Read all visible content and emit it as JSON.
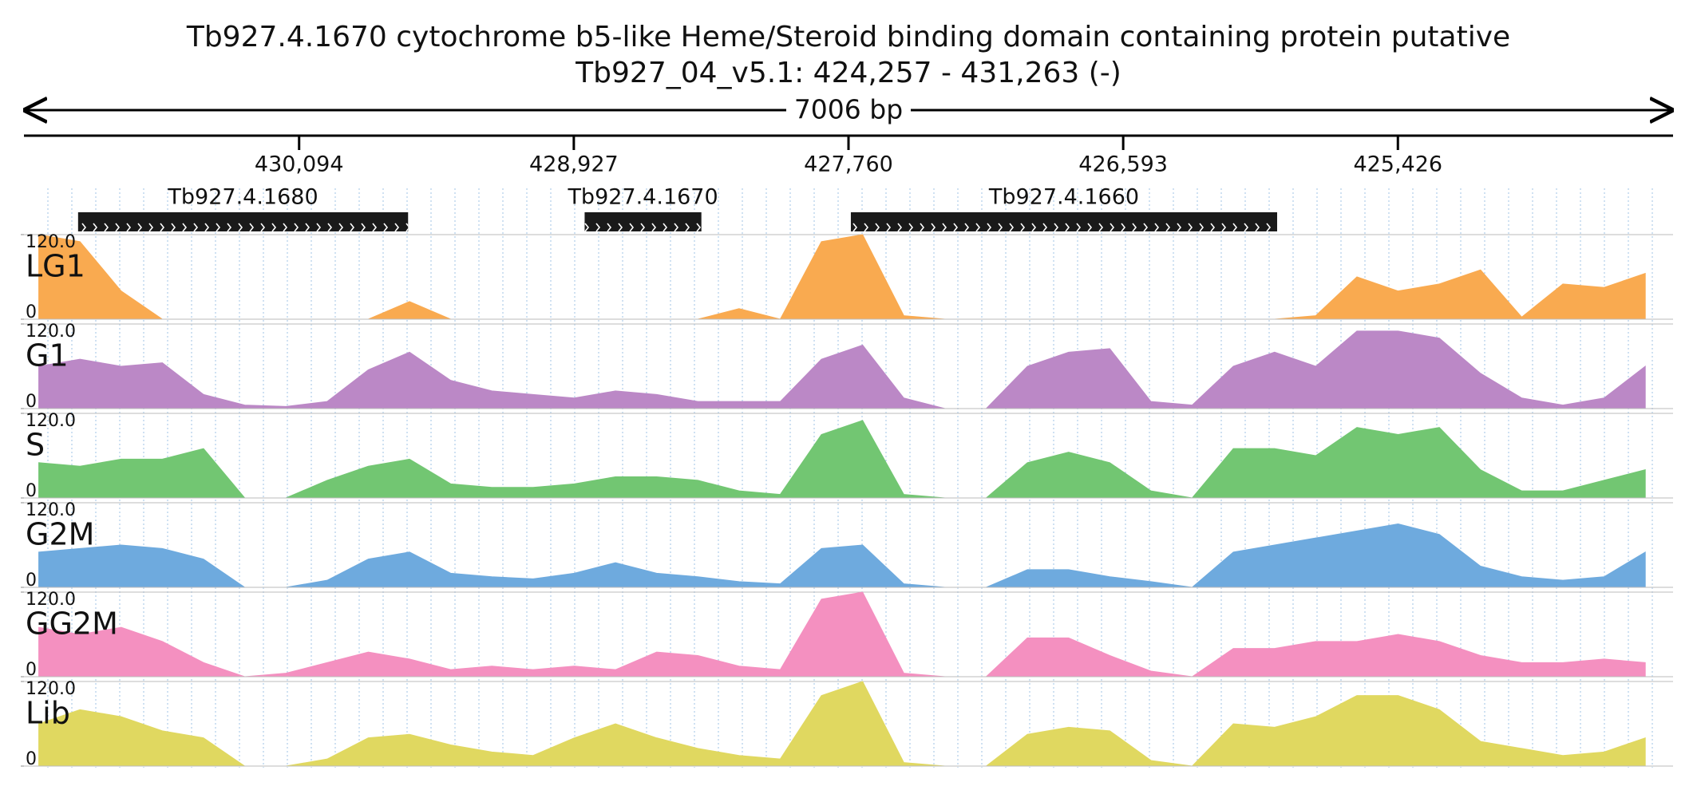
{
  "header": {
    "title": "Tb927.4.1670  cytochrome b5-like Heme/Steroid binding domain containing protein  putative",
    "subtitle": "Tb927_04_v5.1: 424,257 - 431,263 (-)",
    "span": "7006 bp"
  },
  "ruler": {
    "xlim": [
      431263,
      424257
    ],
    "xticks": [
      {
        "value": 430094,
        "label": "430,094"
      },
      {
        "value": 428927,
        "label": "428,927"
      },
      {
        "value": 427760,
        "label": "427,760"
      },
      {
        "value": 426593,
        "label": "426,593"
      },
      {
        "value": 425426,
        "label": "425,426"
      }
    ]
  },
  "genes": [
    {
      "label": "Tb927.4.1680",
      "start": 431033,
      "end": 429631
    },
    {
      "label": "Tb927.4.1670",
      "start": 428881,
      "end": 428385
    },
    {
      "label": "Tb927.4.1660",
      "start": 427750,
      "end": 425939
    }
  ],
  "chart_data": [
    {
      "type": "area",
      "name": "LG1",
      "color": "#f9aa50",
      "xlim": [
        431263,
        424257
      ],
      "ylim": [
        0,
        120
      ],
      "yticks": [
        0,
        {
          "value": 120,
          "label": "120.0"
        }
      ],
      "x": [
        431200,
        431025,
        430850,
        430675,
        430500,
        430325,
        430150,
        429975,
        429800,
        429625,
        429450,
        429275,
        429100,
        428925,
        428750,
        428575,
        428400,
        428225,
        428050,
        427875,
        427700,
        427525,
        427350,
        427175,
        427000,
        426825,
        426650,
        426475,
        426300,
        426125,
        425950,
        425775,
        425600,
        425425,
        425250,
        425075,
        424900,
        424725,
        424550,
        424375
      ],
      "values": [
        120,
        110,
        40,
        0,
        0,
        0,
        0,
        0,
        0,
        25,
        0,
        0,
        0,
        0,
        0,
        0,
        0,
        15,
        0,
        110,
        120,
        5,
        0,
        0,
        0,
        0,
        0,
        0,
        0,
        0,
        0,
        5,
        60,
        40,
        50,
        70,
        3,
        50,
        45,
        65
      ]
    },
    {
      "type": "area",
      "name": "G1",
      "color": "#bb88c6",
      "xlim": [
        431263,
        424257
      ],
      "ylim": [
        0,
        120
      ],
      "yticks": [
        0,
        {
          "value": 120,
          "label": "120.0"
        }
      ],
      "x": [
        431200,
        431025,
        430850,
        430675,
        430500,
        430325,
        430150,
        429975,
        429800,
        429625,
        429450,
        429275,
        429100,
        428925,
        428750,
        428575,
        428400,
        428225,
        428050,
        427875,
        427700,
        427525,
        427350,
        427175,
        427000,
        426825,
        426650,
        426475,
        426300,
        426125,
        425950,
        425775,
        425600,
        425425,
        425250,
        425075,
        424900,
        424725,
        424550,
        424375
      ],
      "values": [
        60,
        70,
        60,
        65,
        20,
        5,
        3,
        10,
        55,
        80,
        40,
        25,
        20,
        15,
        25,
        20,
        10,
        10,
        10,
        70,
        90,
        15,
        0,
        0,
        60,
        80,
        85,
        10,
        5,
        60,
        80,
        60,
        110,
        110,
        100,
        50,
        15,
        5,
        15,
        60
      ]
    },
    {
      "type": "area",
      "name": "S",
      "color": "#72c672",
      "xlim": [
        431263,
        424257
      ],
      "ylim": [
        0,
        120
      ],
      "yticks": [
        0,
        {
          "value": 120,
          "label": "120.0"
        }
      ],
      "x": [
        431200,
        431025,
        430850,
        430675,
        430500,
        430325,
        430150,
        429975,
        429800,
        429625,
        429450,
        429275,
        429100,
        428925,
        428750,
        428575,
        428400,
        428225,
        428050,
        427875,
        427700,
        427525,
        427350,
        427175,
        427000,
        426825,
        426650,
        426475,
        426300,
        426125,
        425950,
        425775,
        425600,
        425425,
        425250,
        425075,
        424900,
        424725,
        424550,
        424375
      ],
      "values": [
        50,
        45,
        55,
        55,
        70,
        0,
        0,
        25,
        45,
        55,
        20,
        15,
        15,
        20,
        30,
        30,
        25,
        10,
        5,
        90,
        110,
        5,
        0,
        0,
        50,
        65,
        50,
        10,
        0,
        70,
        70,
        60,
        100,
        90,
        100,
        40,
        10,
        10,
        25,
        40
      ]
    },
    {
      "type": "area",
      "name": "G2M",
      "color": "#6eaade",
      "xlim": [
        431263,
        424257
      ],
      "ylim": [
        0,
        120
      ],
      "yticks": [
        0,
        {
          "value": 120,
          "label": "120.0"
        }
      ],
      "x": [
        431200,
        431025,
        430850,
        430675,
        430500,
        430325,
        430150,
        429975,
        429800,
        429625,
        429450,
        429275,
        429100,
        428925,
        428750,
        428575,
        428400,
        428225,
        428050,
        427875,
        427700,
        427525,
        427350,
        427175,
        427000,
        426825,
        426650,
        426475,
        426300,
        426125,
        425950,
        425775,
        425600,
        425425,
        425250,
        425075,
        424900,
        424725,
        424550,
        424375
      ],
      "values": [
        50,
        55,
        60,
        55,
        40,
        0,
        0,
        10,
        40,
        50,
        20,
        15,
        12,
        20,
        35,
        20,
        15,
        8,
        5,
        55,
        60,
        5,
        0,
        0,
        25,
        25,
        15,
        8,
        0,
        50,
        60,
        70,
        80,
        90,
        75,
        30,
        15,
        10,
        15,
        50
      ]
    },
    {
      "type": "area",
      "name": "GG2M",
      "color": "#f490c0",
      "xlim": [
        431263,
        424257
      ],
      "ylim": [
        0,
        120
      ],
      "yticks": [
        0,
        {
          "value": 120,
          "label": "120.0"
        }
      ],
      "x": [
        431200,
        431025,
        430850,
        430675,
        430500,
        430325,
        430150,
        429975,
        429800,
        429625,
        429450,
        429275,
        429100,
        428925,
        428750,
        428575,
        428400,
        428225,
        428050,
        427875,
        427700,
        427525,
        427350,
        427175,
        427000,
        426825,
        426650,
        426475,
        426300,
        426125,
        425950,
        425775,
        425600,
        425425,
        425250,
        425075,
        424900,
        424725,
        424550,
        424375
      ],
      "values": [
        70,
        60,
        70,
        50,
        20,
        0,
        5,
        20,
        35,
        25,
        10,
        15,
        10,
        15,
        10,
        35,
        30,
        15,
        10,
        110,
        120,
        5,
        0,
        0,
        55,
        55,
        30,
        8,
        0,
        40,
        40,
        50,
        50,
        60,
        50,
        30,
        20,
        20,
        25,
        20
      ]
    },
    {
      "type": "area",
      "name": "Lib",
      "color": "#e0d860",
      "xlim": [
        431263,
        424257
      ],
      "ylim": [
        0,
        120
      ],
      "yticks": [
        0,
        {
          "value": 120,
          "label": "120.0"
        }
      ],
      "x": [
        431200,
        431025,
        430850,
        430675,
        430500,
        430325,
        430150,
        429975,
        429800,
        429625,
        429450,
        429275,
        429100,
        428925,
        428750,
        428575,
        428400,
        428225,
        428050,
        427875,
        427700,
        427525,
        427350,
        427175,
        427000,
        426825,
        426650,
        426475,
        426300,
        426125,
        425950,
        425775,
        425600,
        425425,
        425250,
        425075,
        424900,
        424725,
        424550,
        424375
      ],
      "values": [
        60,
        80,
        70,
        50,
        40,
        0,
        0,
        10,
        40,
        45,
        30,
        20,
        15,
        40,
        60,
        40,
        25,
        15,
        10,
        100,
        120,
        5,
        0,
        0,
        45,
        55,
        50,
        8,
        0,
        60,
        55,
        70,
        100,
        100,
        80,
        35,
        25,
        15,
        20,
        40
      ]
    }
  ]
}
